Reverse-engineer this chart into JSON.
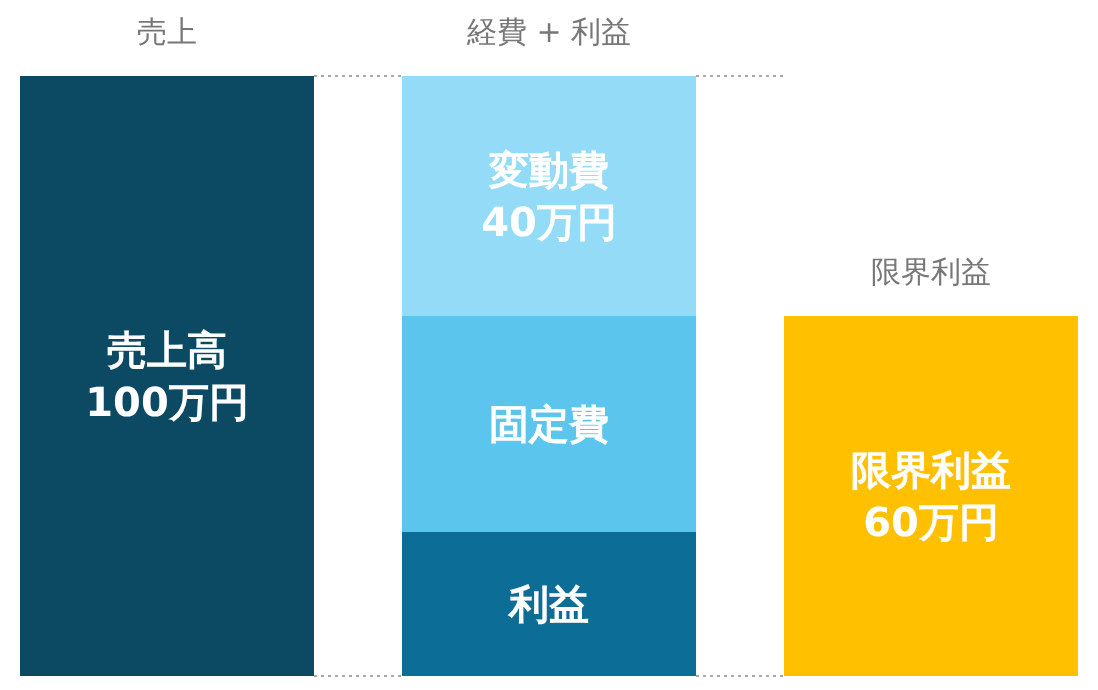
{
  "chart_data": {
    "type": "bar",
    "stacked": true,
    "categories": [
      "売上",
      "経費 + 利益",
      "限界利益"
    ],
    "series": [
      {
        "name": "売上高",
        "color": "#0b4a62",
        "values": [
          100,
          null,
          null
        ],
        "value_labels": [
          "100万円",
          null,
          null
        ]
      },
      {
        "name": "利益",
        "color": "#0c6e96",
        "values": [
          null,
          24,
          null
        ],
        "value_labels": [
          null,
          null,
          null
        ]
      },
      {
        "name": "固定費",
        "color": "#5bc5ed",
        "values": [
          null,
          36,
          null
        ],
        "value_labels": [
          null,
          null,
          null
        ]
      },
      {
        "name": "変動費",
        "color": "#93dbf6",
        "values": [
          null,
          40,
          null
        ],
        "value_labels": [
          null,
          "40万円",
          null
        ]
      },
      {
        "name": "限界利益",
        "color": "#ffc000",
        "values": [
          null,
          null,
          60
        ],
        "value_labels": [
          null,
          null,
          "60万円"
        ]
      }
    ]
  }
}
